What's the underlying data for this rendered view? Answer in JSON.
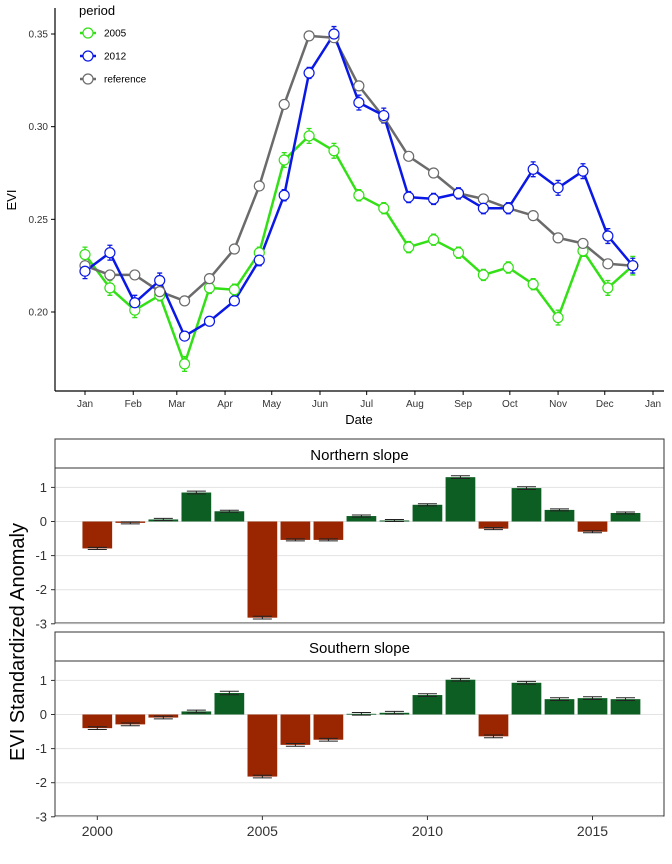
{
  "chart_data": [
    {
      "type": "line",
      "xlabel": "Date",
      "ylabel": "EVI",
      "ylim": [
        0.17,
        0.357
      ],
      "x_ticks": [
        "Jan",
        "Feb",
        "Mar",
        "Apr",
        "May",
        "Jun",
        "Jul",
        "Aug",
        "Sep",
        "Oct",
        "Nov",
        "Dec",
        "Jan"
      ],
      "y_ticks": [
        "0.20",
        "0.25",
        "0.30",
        "0.35"
      ],
      "y_tick_values": [
        0.2,
        0.25,
        0.3,
        0.35
      ],
      "x_tick_days": [
        1,
        32,
        60,
        91,
        121,
        152,
        182,
        213,
        244,
        274,
        305,
        335,
        366
      ],
      "grid": false,
      "legend": {
        "title": "period",
        "placement": "top-left"
      },
      "series": [
        {
          "name": "2005",
          "color": "#33e016",
          "x_days": [
            1,
            17,
            33,
            49,
            65,
            81,
            97,
            113,
            129,
            145,
            161,
            177,
            193,
            209,
            225,
            241,
            257,
            273,
            289,
            305,
            321,
            337,
            353
          ],
          "values": [
            0.231,
            0.213,
            0.201,
            0.209,
            0.172,
            0.213,
            0.212,
            0.232,
            0.282,
            0.295,
            0.287,
            0.263,
            0.256,
            0.235,
            0.239,
            0.232,
            0.22,
            0.224,
            0.215,
            0.197,
            0.233,
            0.213,
            0.225
          ],
          "error": [
            0.004,
            0.004,
            0.004,
            0.003,
            0.004,
            0.003,
            0.003,
            0.003,
            0.004,
            0.004,
            0.004,
            0.003,
            0.003,
            0.003,
            0.003,
            0.003,
            0.003,
            0.003,
            0.003,
            0.004,
            0.003,
            0.004,
            0.005
          ]
        },
        {
          "name": "2012",
          "color": "#0a18e6",
          "x_days": [
            1,
            17,
            33,
            49,
            65,
            81,
            97,
            113,
            129,
            145,
            161,
            177,
            193,
            209,
            225,
            241,
            257,
            273,
            289,
            305,
            321,
            337,
            353
          ],
          "values": [
            0.222,
            0.232,
            0.205,
            0.217,
            0.187,
            0.195,
            0.206,
            0.228,
            0.263,
            0.329,
            0.35,
            0.313,
            0.306,
            0.262,
            0.261,
            0.264,
            0.256,
            0.256,
            0.277,
            0.267,
            0.276,
            0.241,
            0.225
          ],
          "error": [
            0.004,
            0.004,
            0.004,
            0.004,
            0.002,
            0.002,
            0.002,
            0.003,
            0.003,
            0.003,
            0.004,
            0.004,
            0.004,
            0.003,
            0.003,
            0.003,
            0.003,
            0.003,
            0.004,
            0.004,
            0.004,
            0.004,
            0.004
          ]
        },
        {
          "name": "reference",
          "color": "#6b6b6b",
          "x_days": [
            1,
            17,
            33,
            49,
            65,
            81,
            97,
            113,
            129,
            145,
            161,
            177,
            193,
            209,
            225,
            241,
            257,
            273,
            289,
            305,
            321,
            337,
            353
          ],
          "values": [
            0.225,
            0.22,
            0.22,
            0.211,
            0.206,
            0.218,
            0.234,
            0.268,
            0.312,
            0.349,
            0.348,
            0.322,
            0.305,
            0.284,
            0.275,
            0.264,
            0.261,
            0.256,
            0.252,
            0.24,
            0.237,
            0.226,
            0.225
          ]
        }
      ]
    },
    {
      "type": "bar",
      "ylabel": "EVI Standardized Anomaly",
      "x_ticks": [
        "2000",
        "2005",
        "2010",
        "2015"
      ],
      "x_tick_values": [
        2000,
        2005,
        2010,
        2015
      ],
      "y_ticks": [
        "1",
        "0",
        "-1",
        "-2",
        "-3"
      ],
      "y_tick_values": [
        1,
        0,
        -1,
        -2,
        -3
      ],
      "ylim": [
        -3,
        1.5
      ],
      "xlim": [
        1999.1,
        2017.4
      ],
      "grid": true,
      "colors": {
        "negative": "#992600",
        "positive": "#0d5e22"
      },
      "panels": [
        {
          "name": "Northern slope",
          "years": [
            2000,
            2001,
            2002,
            2003,
            2004,
            2005,
            2006,
            2007,
            2008,
            2009,
            2010,
            2011,
            2012,
            2013,
            2014,
            2015,
            2016
          ],
          "values": [
            -0.79,
            -0.04,
            0.06,
            0.85,
            0.3,
            -2.82,
            -0.54,
            -0.54,
            0.16,
            0.03,
            0.49,
            1.3,
            -0.21,
            0.98,
            0.34,
            -0.3,
            0.25
          ],
          "error": [
            0.03,
            0.03,
            0.03,
            0.04,
            0.03,
            0.04,
            0.03,
            0.03,
            0.03,
            0.03,
            0.03,
            0.04,
            0.03,
            0.04,
            0.03,
            0.03,
            0.03
          ]
        },
        {
          "name": "Southern slope",
          "years": [
            2000,
            2001,
            2002,
            2003,
            2004,
            2005,
            2006,
            2007,
            2008,
            2009,
            2010,
            2011,
            2012,
            2013,
            2014,
            2015,
            2016
          ],
          "values": [
            -0.4,
            -0.29,
            -0.09,
            0.09,
            0.63,
            -1.82,
            -0.89,
            -0.74,
            0.02,
            0.05,
            0.57,
            1.02,
            -0.64,
            0.93,
            0.45,
            0.48,
            0.45
          ],
          "error": [
            0.04,
            0.04,
            0.04,
            0.04,
            0.05,
            0.04,
            0.04,
            0.04,
            0.04,
            0.04,
            0.04,
            0.04,
            0.04,
            0.04,
            0.04,
            0.04,
            0.04
          ]
        }
      ]
    }
  ]
}
